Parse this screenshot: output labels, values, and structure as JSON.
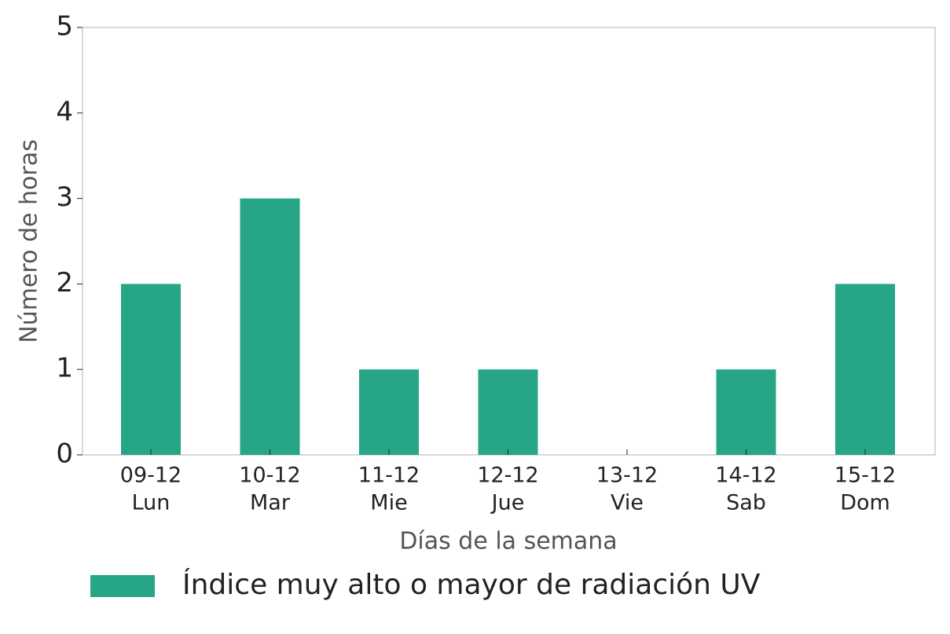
{
  "chart_data": {
    "type": "bar",
    "categories": [
      [
        "09-12",
        "Lun"
      ],
      [
        "10-12",
        "Mar"
      ],
      [
        "11-12",
        "Mie"
      ],
      [
        "12-12",
        "Jue"
      ],
      [
        "13-12",
        "Vie"
      ],
      [
        "14-12",
        "Sab"
      ],
      [
        "15-12",
        "Dom"
      ]
    ],
    "series": [
      {
        "name": "Índice muy alto o mayor de radiación UV",
        "color": "#27a687",
        "values": [
          2,
          3,
          1,
          1,
          0,
          1,
          2
        ]
      }
    ],
    "ylim": [
      0,
      5
    ],
    "yticks": [
      0,
      1,
      2,
      3,
      4,
      5
    ],
    "xlabel": "Días de la semana",
    "ylabel": "Número de horas",
    "legend": "bottom"
  }
}
